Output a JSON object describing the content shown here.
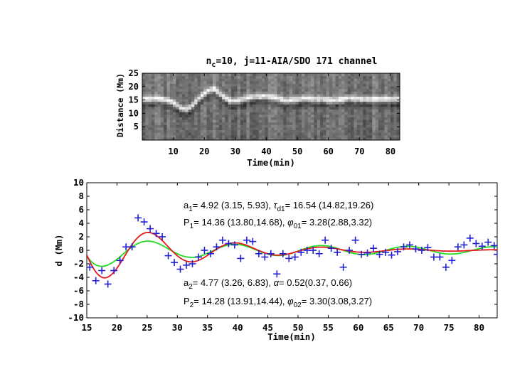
{
  "chart_data": [
    {
      "type": "heatmap",
      "title": "n_c=10, j=11-AIA/SDO 171 channel",
      "title_parts": {
        "n": "n",
        "sub": "c",
        "rest": "=10, j=11-AIA/SDO 171 channel"
      },
      "xlabel": "Time(min)",
      "ylabel": "Distance (Mm)",
      "xlim": [
        0,
        83
      ],
      "ylim": [
        0,
        25
      ],
      "xticks": [
        10,
        20,
        30,
        40,
        50,
        60,
        70,
        80
      ],
      "yticks": [
        5,
        10,
        15,
        20,
        25
      ],
      "colormap": "grayscale",
      "bright_ridge": [
        [
          1,
          15.5
        ],
        [
          5,
          15.8
        ],
        [
          9,
          14.8
        ],
        [
          12,
          12.5
        ],
        [
          14,
          11.5
        ],
        [
          16,
          12.8
        ],
        [
          18,
          15.5
        ],
        [
          21,
          18.5
        ],
        [
          23,
          19.5
        ],
        [
          25,
          17.5
        ],
        [
          28,
          15.0
        ],
        [
          31,
          15.0
        ],
        [
          34,
          16.0
        ],
        [
          37,
          16.5
        ],
        [
          40,
          16.5
        ],
        [
          43,
          16.0
        ],
        [
          46,
          15.0
        ],
        [
          49,
          15.2
        ],
        [
          52,
          15.8
        ],
        [
          55,
          15.5
        ],
        [
          58,
          15.5
        ],
        [
          61,
          15.0
        ],
        [
          64,
          15.3
        ],
        [
          67,
          15.8
        ],
        [
          70,
          15.5
        ],
        [
          74,
          15.3
        ],
        [
          78,
          15.5
        ],
        [
          82,
          15.5
        ]
      ]
    },
    {
      "type": "scatter",
      "xlabel": "Time(min)",
      "ylabel": "d (Mm)",
      "xlim": [
        15,
        83
      ],
      "ylim": [
        -10,
        10
      ],
      "xticks": [
        15,
        20,
        25,
        30,
        35,
        40,
        45,
        50,
        55,
        60,
        65,
        70,
        75,
        80
      ],
      "yticks": [
        -10,
        -8,
        -6,
        -4,
        -2,
        0,
        2,
        4,
        6,
        8,
        10
      ],
      "points_color": "#1f1fd6",
      "points": [
        [
          15.5,
          -2.5
        ],
        [
          16.5,
          -4.5
        ],
        [
          17.5,
          -3.0
        ],
        [
          18.5,
          -5.0
        ],
        [
          19.5,
          -3.0
        ],
        [
          20.5,
          -1.5
        ],
        [
          21.5,
          0.5
        ],
        [
          22.5,
          0.5
        ],
        [
          23.5,
          4.8
        ],
        [
          24.5,
          4.2
        ],
        [
          25.5,
          3.2
        ],
        [
          26.5,
          2.5
        ],
        [
          27.5,
          2.0
        ],
        [
          28.5,
          -0.8
        ],
        [
          29.5,
          -1.8
        ],
        [
          30.5,
          -2.8
        ],
        [
          31.5,
          -2.2
        ],
        [
          32.5,
          -2.0
        ],
        [
          33.5,
          -1.0
        ],
        [
          34.5,
          0.0
        ],
        [
          35.5,
          -0.5
        ],
        [
          36.5,
          0.5
        ],
        [
          37.5,
          1.5
        ],
        [
          38.5,
          1.0
        ],
        [
          39.5,
          0.8
        ],
        [
          40.5,
          -1.2
        ],
        [
          41.5,
          1.5
        ],
        [
          42.5,
          1.3
        ],
        [
          43.5,
          -0.5
        ],
        [
          44.5,
          -1.0
        ],
        [
          45.5,
          -0.5
        ],
        [
          46.5,
          -3.5
        ],
        [
          47.5,
          -0.5
        ],
        [
          48.5,
          -1.2
        ],
        [
          49.5,
          -1.0
        ],
        [
          50.5,
          -0.3
        ],
        [
          51.5,
          0.0
        ],
        [
          52.5,
          0.0
        ],
        [
          53.5,
          -0.5
        ],
        [
          54.5,
          1.5
        ],
        [
          55.5,
          0.3
        ],
        [
          56.5,
          -0.3
        ],
        [
          57.5,
          -2.5
        ],
        [
          58.5,
          0.0
        ],
        [
          59.5,
          1.5
        ],
        [
          60.5,
          -0.6
        ],
        [
          61.5,
          -0.4
        ],
        [
          62.5,
          0.3
        ],
        [
          63.5,
          -0.6
        ],
        [
          64.5,
          -0.3
        ],
        [
          65.5,
          -0.7
        ],
        [
          66.5,
          -0.2
        ],
        [
          67.5,
          0.5
        ],
        [
          68.5,
          0.8
        ],
        [
          69.5,
          0.2
        ],
        [
          70.5,
          0.0
        ],
        [
          71.5,
          0.4
        ],
        [
          72.5,
          -1.0
        ],
        [
          73.5,
          -1.0
        ],
        [
          74.5,
          -2.5
        ],
        [
          75.5,
          -1.5
        ],
        [
          76.5,
          0.5
        ],
        [
          77.5,
          0.8
        ],
        [
          78.5,
          1.8
        ],
        [
          79.5,
          1.0
        ],
        [
          80.5,
          0.6
        ],
        [
          81.5,
          1.2
        ],
        [
          82.5,
          0.7
        ],
        [
          83.0,
          -0.6
        ]
      ],
      "series": [
        {
          "color": "#e41a1c",
          "amplitude": 4.92,
          "damping_time": 16.54,
          "period": 14.36,
          "phase": 3.28,
          "t0": 15
        },
        {
          "color": "#22dd22",
          "amplitude": 4.77,
          "alpha": 0.52,
          "period": 14.28,
          "phase": 3.3,
          "t0": 15
        }
      ],
      "annotations": [
        [
          {
            "t": "a"
          },
          {
            "t": "1",
            "sub": true
          },
          {
            "t": "= 4.92 (3.15, 5.93), "
          },
          {
            "t": "τ",
            "italic": true
          },
          {
            "t": "d1",
            "sub": true
          },
          {
            "t": "= 16.54 (14.82,19.26)"
          }
        ],
        [
          {
            "t": "P"
          },
          {
            "t": "1",
            "sub": true
          },
          {
            "t": "= 14.36 (13.80,14.68), "
          },
          {
            "t": "φ",
            "italic": true
          },
          {
            "t": "01",
            "sub": true
          },
          {
            "t": "= 3.28(2.88,3.32)"
          }
        ],
        [
          {
            "t": "a"
          },
          {
            "t": "2",
            "sub": true
          },
          {
            "t": "= 4.77 (3.26, 6.83),  "
          },
          {
            "t": "α",
            "italic": true
          },
          {
            "t": "= 0.52(0.37, 0.66)"
          }
        ],
        [
          {
            "t": "P"
          },
          {
            "t": "2",
            "sub": true
          },
          {
            "t": "= 14.28  (13.91,14.44),   "
          },
          {
            "t": "φ",
            "italic": true
          },
          {
            "t": "02",
            "sub": true
          },
          {
            "t": "= 3.30(3.08,3.27)"
          }
        ]
      ]
    }
  ]
}
